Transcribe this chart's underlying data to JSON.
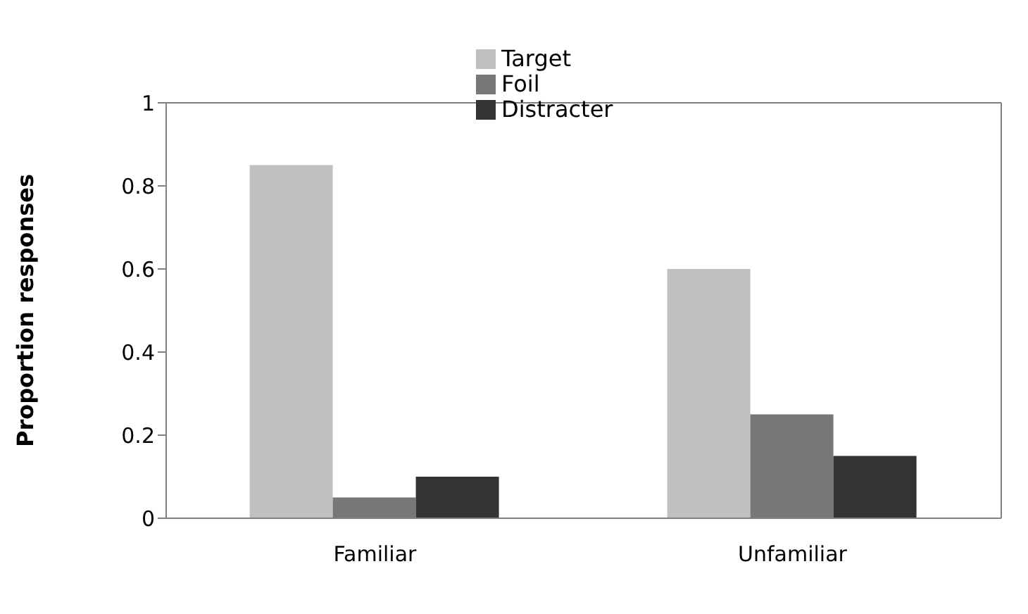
{
  "chart_data": {
    "type": "bar",
    "ylabel": "Proportion responses",
    "categories": [
      "Familiar",
      "Unfamiliar"
    ],
    "series": [
      {
        "name": "Target",
        "color": "#c0c0c0",
        "values": [
          0.85,
          0.6
        ]
      },
      {
        "name": "Foil",
        "color": "#777777",
        "values": [
          0.05,
          0.25
        ]
      },
      {
        "name": "Distracter",
        "color": "#333333",
        "values": [
          0.1,
          0.15
        ]
      }
    ],
    "ylim": [
      0,
      1
    ],
    "yticks": [
      0,
      0.2,
      0.4,
      0.6,
      0.8,
      1
    ],
    "grid": false,
    "legend": "top"
  }
}
